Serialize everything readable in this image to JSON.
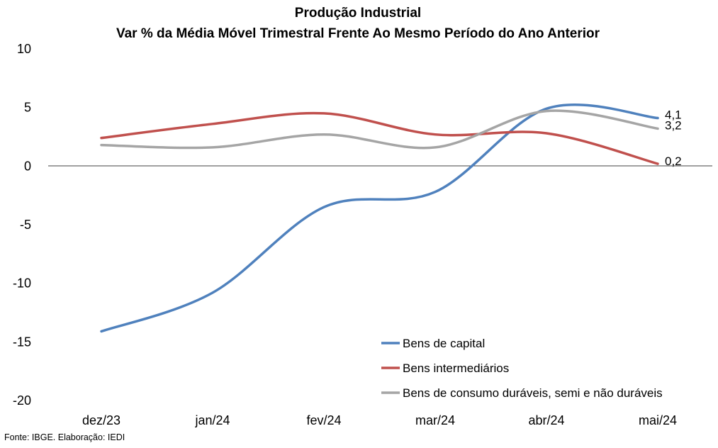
{
  "chart_data": {
    "type": "line",
    "title": "Produção Industrial",
    "subtitle": "Var % da Média Móvel Trimestral Frente Ao Mesmo Período do Ano Anterior",
    "categories": [
      "dez/23",
      "jan/24",
      "fev/24",
      "mar/24",
      "abr/24",
      "mai/24"
    ],
    "ylim": [
      -20,
      10
    ],
    "yticks": [
      "10",
      "5",
      "0",
      "-5",
      "-10",
      "-15",
      "-20"
    ],
    "series": [
      {
        "name": "Bens de capital",
        "color": "#4f81bd",
        "values": [
          -14.1,
          -10.8,
          -3.5,
          -2.2,
          4.9,
          4.1
        ],
        "end_label": "4,1"
      },
      {
        "name": "Bens intermediários",
        "color": "#c0504d",
        "values": [
          2.4,
          3.6,
          4.5,
          2.7,
          2.8,
          0.2
        ],
        "end_label": "0,2"
      },
      {
        "name": "Bens de consumo duráveis, semi e não duráveis",
        "color": "#a5a5a5",
        "values": [
          1.8,
          1.6,
          2.7,
          1.6,
          4.7,
          3.2
        ],
        "end_label": "3,2"
      }
    ],
    "legend_position": "bottom-right",
    "grid": false
  },
  "footer": {
    "source": "Fonte: IBGE. Elaboração: IEDI"
  }
}
